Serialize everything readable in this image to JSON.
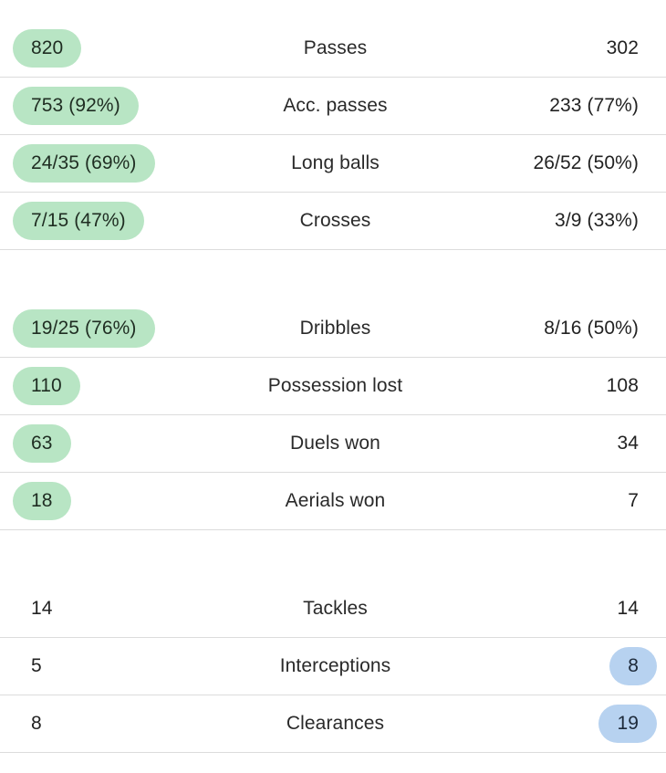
{
  "colors": {
    "home_highlight": "#b8e5c4",
    "away_highlight": "#b7d2f0",
    "divider": "#dcdcdc"
  },
  "groups": [
    {
      "rows": [
        {
          "home": "820",
          "label": "Passes",
          "away": "302",
          "winner": "home"
        },
        {
          "home": "753 (92%)",
          "label": "Acc. passes",
          "away": "233 (77%)",
          "winner": "home"
        },
        {
          "home": "24/35 (69%)",
          "label": "Long balls",
          "away": "26/52 (50%)",
          "winner": "home"
        },
        {
          "home": "7/15 (47%)",
          "label": "Crosses",
          "away": "3/9 (33%)",
          "winner": "home"
        }
      ]
    },
    {
      "rows": [
        {
          "home": "19/25 (76%)",
          "label": "Dribbles",
          "away": "8/16 (50%)",
          "winner": "home"
        },
        {
          "home": "110",
          "label": "Possession lost",
          "away": "108",
          "winner": "home"
        },
        {
          "home": "63",
          "label": "Duels won",
          "away": "34",
          "winner": "home"
        },
        {
          "home": "18",
          "label": "Aerials won",
          "away": "7",
          "winner": "home"
        }
      ]
    },
    {
      "rows": [
        {
          "home": "14",
          "label": "Tackles",
          "away": "14",
          "winner": "none"
        },
        {
          "home": "5",
          "label": "Interceptions",
          "away": "8",
          "winner": "away"
        },
        {
          "home": "8",
          "label": "Clearances",
          "away": "19",
          "winner": "away"
        }
      ]
    }
  ]
}
